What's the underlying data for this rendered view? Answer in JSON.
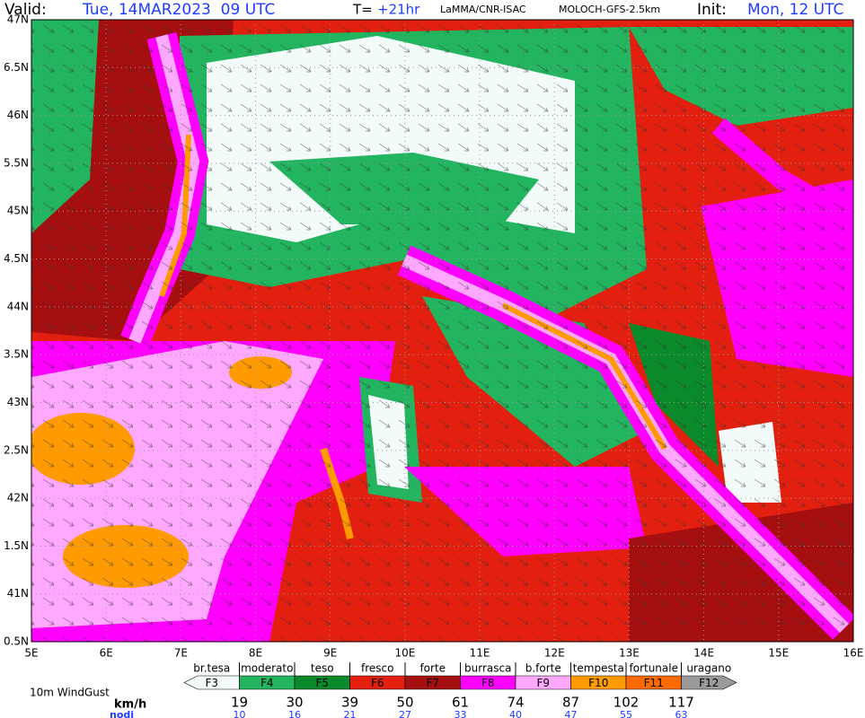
{
  "header": {
    "valid_label": "Valid:",
    "valid": "Tue, 14MAR2023  09 UTC",
    "step_label": "T=",
    "step": "+21hr",
    "source": "LaMMA/CNR-ISAC",
    "model": "MOLOCH-GFS-2.5km",
    "init_label": "Init:",
    "init": "Mon, 12 UTC"
  },
  "map": {
    "lat_labels": [
      "47N",
      "6.5N",
      "46N",
      "5.5N",
      "45N",
      "4.5N",
      "44N",
      "3.5N",
      "43N",
      "2.5N",
      "42N",
      "1.5N",
      "41N",
      "0.5N"
    ],
    "lon_labels": [
      "5E",
      "6E",
      "7E",
      "8E",
      "9E",
      "10E",
      "11E",
      "12E",
      "13E",
      "14E",
      "15E",
      "16E"
    ]
  },
  "legend": {
    "title": "10m WindGust",
    "kmh_unit": "km/h",
    "knots_unit": "nodi",
    "classes": [
      {
        "name": "br.tesa",
        "label": "F3",
        "color": "#f2fafa"
      },
      {
        "name": "moderato",
        "label": "F4",
        "color": "#22b45e"
      },
      {
        "name": "teso",
        "label": "F5",
        "color": "#0b8a2c"
      },
      {
        "name": "fresco",
        "label": "F6",
        "color": "#e3200f"
      },
      {
        "name": "forte",
        "label": "F7",
        "color": "#a50f0f"
      },
      {
        "name": "burrasca",
        "label": "F8",
        "color": "#ff00ff"
      },
      {
        "name": "b.forte",
        "label": "F9",
        "color": "#ffa8ff"
      },
      {
        "name": "tempesta",
        "label": "F10",
        "color": "#ff9a00"
      },
      {
        "name": "fortunale",
        "label": "F11",
        "color": "#ff6a00"
      },
      {
        "name": "uragano",
        "label": "F12",
        "color": "#9a9a9a"
      }
    ],
    "kmh": [
      "19",
      "30",
      "39",
      "50",
      "61",
      "74",
      "87",
      "102",
      "117"
    ],
    "knots": [
      "10",
      "16",
      "21",
      "27",
      "33",
      "40",
      "47",
      "55",
      "63"
    ]
  }
}
